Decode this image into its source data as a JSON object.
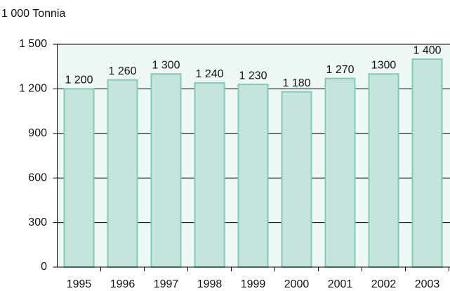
{
  "chart_data": {
    "type": "bar",
    "y_label": "1 000 Tonnia",
    "categories": [
      "1995",
      "1996",
      "1997",
      "1998",
      "1999",
      "2000",
      "2001",
      "2002",
      "2003"
    ],
    "values": [
      1200,
      1260,
      1300,
      1240,
      1230,
      1180,
      1270,
      1300,
      1400
    ],
    "value_labels": [
      "1 200",
      "1 260",
      "1 300",
      "1 240",
      "1 230",
      "1 180",
      "1 270",
      "1300",
      "1 400"
    ],
    "color": "#c5e5dc",
    "ylim": [
      0,
      1500
    ],
    "yticks": [
      0,
      300,
      600,
      900,
      {
        "value": 1200,
        "label": "1 200"
      },
      {
        "value": 1500,
        "label": "1 500"
      }
    ],
    "grid": true
  }
}
